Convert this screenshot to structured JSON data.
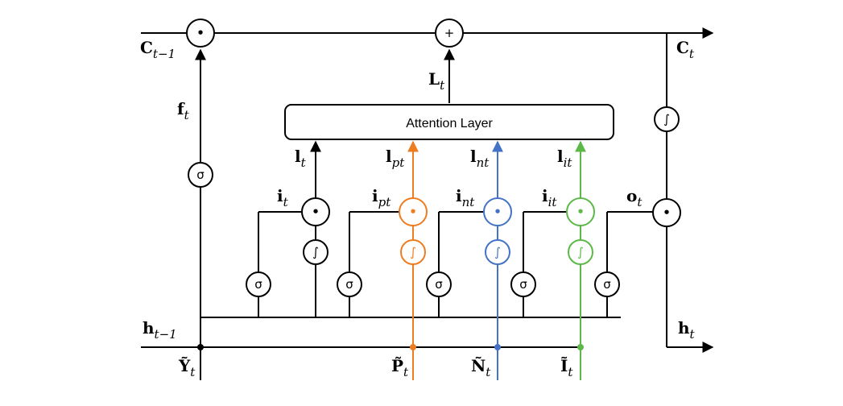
{
  "attention_layer": {
    "label": "Attention Layer"
  },
  "symbols": {
    "sigma": "σ",
    "tanh": "∫",
    "mult": "•",
    "plus": "+"
  },
  "labels": {
    "c_prev": {
      "main": "C",
      "sub": "t−1"
    },
    "c_t": {
      "main": "C",
      "sub": "t"
    },
    "l_big": {
      "main": "L",
      "sub": "t"
    },
    "f_t": {
      "main": "f",
      "sub": "t"
    },
    "l_t": {
      "main": "l",
      "sub": "t"
    },
    "l_pt": {
      "main": "l",
      "sub": "pt"
    },
    "l_nt": {
      "main": "l",
      "sub": "nt"
    },
    "l_it": {
      "main": "l",
      "sub": "it"
    },
    "i_t": {
      "main": "i",
      "sub": "t"
    },
    "i_pt": {
      "main": "i",
      "sub": "pt"
    },
    "i_nt": {
      "main": "i",
      "sub": "nt"
    },
    "i_it": {
      "main": "i",
      "sub": "it"
    },
    "o_t": {
      "main": "o",
      "sub": "t"
    },
    "h_prev": {
      "main": "h",
      "sub": "t−1"
    },
    "h_t": {
      "main": "h",
      "sub": "t"
    },
    "y_t": {
      "main": "Ỹ",
      "sub": "t"
    },
    "p_t": {
      "main": "P̃",
      "sub": "t"
    },
    "n_t": {
      "main": "Ñ",
      "sub": "t"
    },
    "i_tilde": {
      "main": "Ĩ",
      "sub": "t"
    }
  },
  "colors": {
    "black": "#000000",
    "orange": "#ee7d21",
    "blue": "#4472c4",
    "green": "#5cb947"
  }
}
